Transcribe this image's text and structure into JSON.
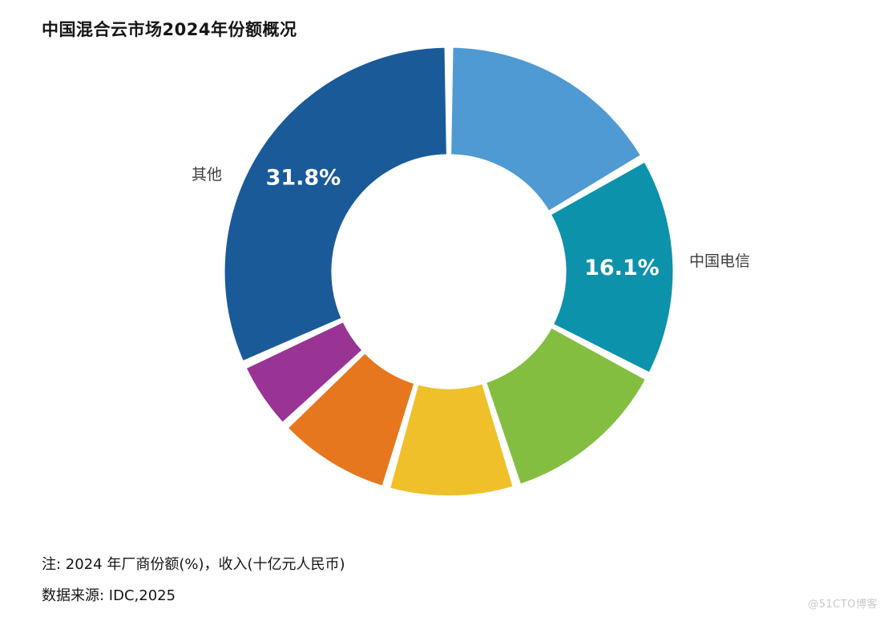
{
  "title": "中国混合云市场2024年份额概况",
  "notes": {
    "line1": "注: 2024 年厂商份额(%)，收入(十亿元人民币)",
    "line2": "数据来源: IDC,2025"
  },
  "watermark": {
    "text": "@51CTO博客"
  },
  "chart_data": {
    "type": "pie",
    "subtype": "donut",
    "title": "中国混合云市场2024年份额概况",
    "unit": "%",
    "start_angle_deg": 0,
    "direction": "clockwise",
    "inner_radius_ratio": 0.52,
    "gap_between_slices_deg": 2,
    "legend": "none",
    "segments": [
      {
        "name": "",
        "value": 16.6,
        "estimated": true,
        "value_label": "",
        "color": "#4F9AD3"
      },
      {
        "name": "中国电信",
        "value": 16.1,
        "estimated": false,
        "value_label": "16.1%",
        "color": "#0D92AB"
      },
      {
        "name": "",
        "value": 12.4,
        "estimated": true,
        "value_label": "",
        "color": "#84BE41"
      },
      {
        "name": "",
        "value": 9.4,
        "estimated": true,
        "value_label": "",
        "color": "#F0C02B"
      },
      {
        "name": "",
        "value": 8.5,
        "estimated": true,
        "value_label": "",
        "color": "#E6771E"
      },
      {
        "name": "",
        "value": 5.2,
        "estimated": true,
        "value_label": "",
        "color": "#9A3494"
      },
      {
        "name": "其他",
        "value": 31.8,
        "estimated": false,
        "value_label": "31.8%",
        "color": "#1A5A99"
      }
    ],
    "outside_labels": [
      {
        "text": "其他",
        "segment_index": 6,
        "side": "left"
      },
      {
        "text": "中国电信",
        "segment_index": 1,
        "side": "right"
      }
    ],
    "notes": [
      "注: 2024 年厂商份额(%)，收入(十亿元人民币)",
      "数据来源: IDC,2025"
    ]
  }
}
